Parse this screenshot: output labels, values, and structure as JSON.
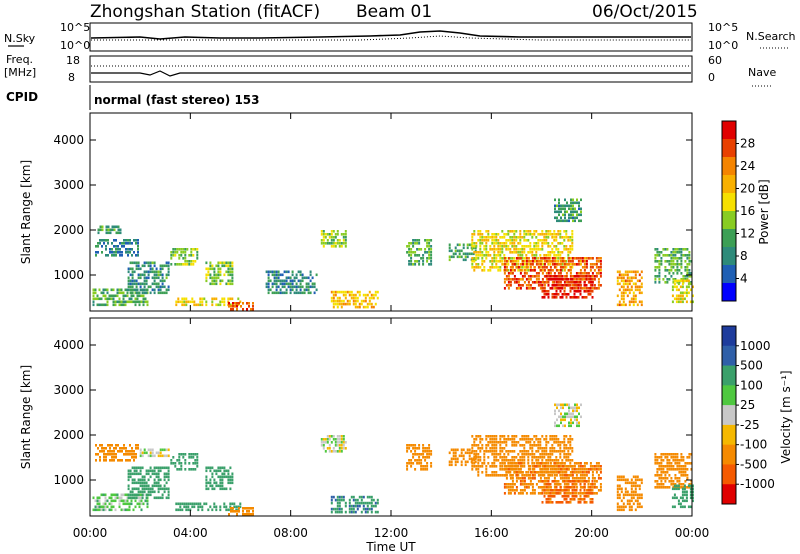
{
  "header": {
    "station": "Zhongshan Station (fitACF)",
    "beam": "Beam 01",
    "date": "06/Oct/2015",
    "cpid_label": "CPID",
    "cpid_text": "normal (fast stereo) 153"
  },
  "top_panels": {
    "nsky_label": "N.Sky",
    "nsky_ticks": [
      "10^5",
      "10^0"
    ],
    "nsearch_label": "N.Search",
    "nsearch_ticks": [
      "10^5",
      "10^0"
    ],
    "freq_label": "Freq.",
    "freq_unit": "[MHz]",
    "freq_ticks": [
      "18",
      "8"
    ],
    "nave_label": "Nave",
    "nave_ticks": [
      "60",
      "0"
    ]
  },
  "x_axis": {
    "label": "Time UT",
    "ticks": [
      "00:00",
      "04:00",
      "08:00",
      "12:00",
      "16:00",
      "20:00",
      "00:00"
    ],
    "range_hours": [
      0,
      24
    ]
  },
  "colors": {
    "power": [
      "#0000ff",
      "#1f5fb4",
      "#2e8b7a",
      "#3c9f55",
      "#88cc22",
      "#f6e000",
      "#f8b000",
      "#f48400",
      "#e84000",
      "#e00000"
    ],
    "velocity": [
      "#e00000",
      "#f55a00",
      "#f58a00",
      "#f5b800",
      "#c8c8c8",
      "#4fc840",
      "#3aa06a",
      "#2f5fa8",
      "#1e3c9c"
    ]
  },
  "chart_data": [
    {
      "type": "heatmap",
      "name": "power",
      "ylabel": "Slant Range [km]",
      "yticks": [
        "1000",
        "2000",
        "3000",
        "4000"
      ],
      "ylim": [
        200,
        4600
      ],
      "colorbar_label": "Power [dB]",
      "colorbar_ticks": [
        "4",
        "8",
        "12",
        "16",
        "20",
        "24",
        "28"
      ],
      "colorbar_range": [
        0,
        32
      ],
      "patches": [
        {
          "t": [
            0.2,
            1.9
          ],
          "r": [
            1400,
            1800
          ],
          "v": 8
        },
        {
          "t": [
            0.1,
            2.3
          ],
          "r": [
            300,
            700
          ],
          "v": 12
        },
        {
          "t": [
            0.3,
            1.2
          ],
          "r": [
            1900,
            2100
          ],
          "v": 10
        },
        {
          "t": [
            1.5,
            3.1
          ],
          "r": [
            600,
            1300
          ],
          "v": 9
        },
        {
          "t": [
            3.2,
            4.3
          ],
          "r": [
            1200,
            1600
          ],
          "v": 14
        },
        {
          "t": [
            3.4,
            6.0
          ],
          "r": [
            300,
            500
          ],
          "v": 18
        },
        {
          "t": [
            4.6,
            5.7
          ],
          "r": [
            800,
            1300
          ],
          "v": 14
        },
        {
          "t": [
            5.5,
            6.5
          ],
          "r": [
            200,
            400
          ],
          "v": 27
        },
        {
          "t": [
            9.2,
            10.2
          ],
          "r": [
            1650,
            2000
          ],
          "v": 15
        },
        {
          "t": [
            9.6,
            11.5
          ],
          "r": [
            300,
            650
          ],
          "v": 20
        },
        {
          "t": [
            7.0,
            9.0
          ],
          "r": [
            600,
            1100
          ],
          "v": 8
        },
        {
          "t": [
            12.6,
            13.6
          ],
          "r": [
            1200,
            1800
          ],
          "v": 12
        },
        {
          "t": [
            14.3,
            15.4
          ],
          "r": [
            1300,
            1700
          ],
          "v": 10
        },
        {
          "t": [
            15.2,
            19.2
          ],
          "r": [
            1100,
            2000
          ],
          "v": 18
        },
        {
          "t": [
            16.5,
            20.4
          ],
          "r": [
            700,
            1400
          ],
          "v": 26
        },
        {
          "t": [
            18.0,
            20.0
          ],
          "r": [
            500,
            1000
          ],
          "v": 30
        },
        {
          "t": [
            18.5,
            19.6
          ],
          "r": [
            2200,
            2700
          ],
          "v": 10
        },
        {
          "t": [
            21.0,
            22.0
          ],
          "r": [
            300,
            1100
          ],
          "v": 22
        },
        {
          "t": [
            22.5,
            24.0
          ],
          "r": [
            800,
            1600
          ],
          "v": 12
        },
        {
          "t": [
            23.2,
            24.0
          ],
          "r": [
            400,
            900
          ],
          "v": 18
        }
      ]
    },
    {
      "type": "heatmap",
      "name": "velocity",
      "ylabel": "Slant Range [km]",
      "yticks": [
        "1000",
        "2000",
        "3000",
        "4000"
      ],
      "ylim": [
        200,
        4600
      ],
      "colorbar_label": "Velocity [m s⁻¹]",
      "colorbar_ticks": [
        "1000",
        "500",
        "100",
        "25",
        "-25",
        "-100",
        "-500",
        "-1000"
      ],
      "patches": [
        {
          "t": [
            0.2,
            1.9
          ],
          "r": [
            1400,
            1800
          ],
          "v": -300
        },
        {
          "t": [
            0.1,
            2.3
          ],
          "r": [
            300,
            700
          ],
          "v": 60
        },
        {
          "t": [
            1.9,
            3.1
          ],
          "r": [
            1500,
            1700
          ],
          "v": 0
        },
        {
          "t": [
            1.5,
            3.1
          ],
          "r": [
            600,
            1300
          ],
          "v": 200
        },
        {
          "t": [
            3.2,
            4.3
          ],
          "r": [
            1200,
            1600
          ],
          "v": 300
        },
        {
          "t": [
            3.4,
            6.0
          ],
          "r": [
            300,
            500
          ],
          "v": 250
        },
        {
          "t": [
            4.6,
            5.7
          ],
          "r": [
            800,
            1300
          ],
          "v": 300
        },
        {
          "t": [
            5.5,
            6.5
          ],
          "r": [
            200,
            400
          ],
          "v": -300
        },
        {
          "t": [
            9.2,
            10.2
          ],
          "r": [
            1650,
            2000
          ],
          "v": 0
        },
        {
          "t": [
            9.6,
            11.5
          ],
          "r": [
            300,
            650
          ],
          "v": 400
        },
        {
          "t": [
            12.6,
            13.6
          ],
          "r": [
            1200,
            1800
          ],
          "v": -300
        },
        {
          "t": [
            14.3,
            15.4
          ],
          "r": [
            1300,
            1700
          ],
          "v": -200
        },
        {
          "t": [
            15.2,
            19.2
          ],
          "r": [
            1100,
            2000
          ],
          "v": -300
        },
        {
          "t": [
            16.5,
            20.4
          ],
          "r": [
            700,
            1400
          ],
          "v": -400
        },
        {
          "t": [
            18.0,
            20.0
          ],
          "r": [
            500,
            1000
          ],
          "v": -600
        },
        {
          "t": [
            18.5,
            19.6
          ],
          "r": [
            2200,
            2700
          ],
          "v": 0
        },
        {
          "t": [
            21.0,
            22.0
          ],
          "r": [
            300,
            1100
          ],
          "v": -300
        },
        {
          "t": [
            22.5,
            24.0
          ],
          "r": [
            800,
            1600
          ],
          "v": -300
        },
        {
          "t": [
            23.2,
            24.0
          ],
          "r": [
            400,
            900
          ],
          "v": 300
        }
      ]
    }
  ]
}
